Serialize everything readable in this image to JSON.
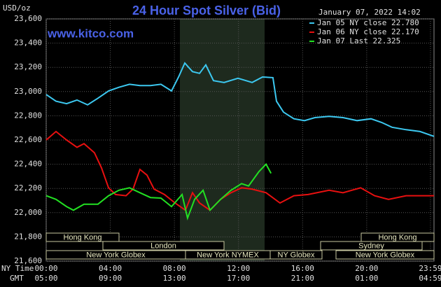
{
  "chart_data": {
    "type": "line",
    "title": "24 Hour Spot Silver (Bid)",
    "watermark": "www.kitco.com",
    "timestamp": "January 07, 2022 14:02",
    "y_label": "USD/oz",
    "x_label": "NY Time",
    "x2_label": "GMT",
    "xlim": [
      0,
      24.2
    ],
    "xticks": [
      {
        "value": 0,
        "label": "00:00"
      },
      {
        "value": 4,
        "label": "04:00"
      },
      {
        "value": 8,
        "label": "08:00"
      },
      {
        "value": 12,
        "label": "12:00"
      },
      {
        "value": 16,
        "label": "16:00"
      },
      {
        "value": 20,
        "label": "20:00"
      },
      {
        "value": 23.98,
        "label": "23:59"
      }
    ],
    "x2ticks": [
      "05:00",
      "09:00",
      "13:00",
      "17:00",
      "21:00",
      "01:00",
      "04:59"
    ],
    "ylim": [
      21600,
      23600
    ],
    "yticks": [
      {
        "value": 21600,
        "label": "21,600"
      },
      {
        "value": 21800,
        "label": "21,800"
      },
      {
        "value": 22000,
        "label": "22,000"
      },
      {
        "value": 22200,
        "label": "22,200"
      },
      {
        "value": 22400,
        "label": "22,400"
      },
      {
        "value": 22600,
        "label": "22,600"
      },
      {
        "value": 22800,
        "label": "22,800"
      },
      {
        "value": 23000,
        "label": "23,000"
      },
      {
        "value": 23200,
        "label": "23,200"
      },
      {
        "value": 23400,
        "label": "23,400"
      },
      {
        "value": 23600,
        "label": "23,600"
      }
    ],
    "grid": true,
    "sessions": [
      "Hong Kong",
      "Hong Kong",
      "London",
      "Sydney",
      "New York Globex",
      "New York NYMEX",
      "NY Globex",
      "New York Globex"
    ],
    "series": [
      {
        "name": "Jan 05 NY close 22.780",
        "color": "#3cc8f0",
        "x": [
          0,
          0.61,
          1.27,
          1.92,
          2.58,
          3.23,
          3.89,
          4.54,
          5.2,
          5.85,
          6.51,
          7.16,
          7.82,
          8.26,
          8.65,
          9.13,
          9.57,
          9.96,
          10.44,
          11.1,
          11.97,
          12.85,
          13.5,
          14.15,
          14.37,
          14.81,
          15.46,
          16.12,
          16.77,
          17.65,
          18.52,
          19.4,
          20.27,
          20.93,
          21.58,
          22.46,
          23.33,
          24.2
        ],
        "values": [
          22975,
          22920,
          22900,
          22930,
          22890,
          22945,
          23005,
          23035,
          23060,
          23050,
          23050,
          23060,
          23005,
          23120,
          23235,
          23165,
          23150,
          23220,
          23090,
          23075,
          23110,
          23075,
          23120,
          23115,
          22920,
          22830,
          22775,
          22760,
          22785,
          22795,
          22785,
          22760,
          22775,
          22745,
          22705,
          22685,
          22670,
          22630
        ]
      },
      {
        "name": "Jan 06 NY close 22.170",
        "color": "#e81010",
        "x": [
          0,
          0.61,
          1.27,
          1.92,
          2.36,
          3.01,
          3.45,
          3.89,
          4.33,
          4.98,
          5.42,
          5.85,
          6.29,
          6.73,
          7.38,
          8.04,
          8.69,
          9.13,
          9.57,
          10.22,
          10.88,
          11.53,
          12.19,
          12.84,
          13.72,
          14.59,
          15.46,
          16.34,
          17.65,
          18.52,
          19.62,
          20.49,
          21.36,
          22.46,
          24.2
        ],
        "values": [
          22600,
          22670,
          22600,
          22540,
          22570,
          22495,
          22370,
          22205,
          22150,
          22140,
          22195,
          22357,
          22310,
          22195,
          22150,
          22080,
          22020,
          22165,
          22080,
          22020,
          22110,
          22165,
          22205,
          22195,
          22165,
          22080,
          22140,
          22150,
          22185,
          22165,
          22205,
          22140,
          22110,
          22140,
          22140
        ]
      },
      {
        "name": "Jan 07 Last 22.325",
        "color": "#22e022",
        "x": [
          0,
          0.61,
          1.27,
          1.7,
          2.36,
          3.23,
          3.89,
          4.54,
          5.2,
          5.85,
          6.51,
          7.16,
          7.82,
          8.48,
          8.82,
          9.26,
          9.79,
          10.22,
          10.88,
          11.53,
          12.19,
          12.63,
          13.28,
          13.72,
          14.03
        ],
        "values": [
          22140,
          22110,
          22050,
          22020,
          22070,
          22070,
          22140,
          22185,
          22205,
          22165,
          22125,
          22120,
          22050,
          22150,
          21955,
          22110,
          22185,
          22020,
          22110,
          22185,
          22240,
          22220,
          22340,
          22400,
          22325
        ]
      }
    ]
  }
}
